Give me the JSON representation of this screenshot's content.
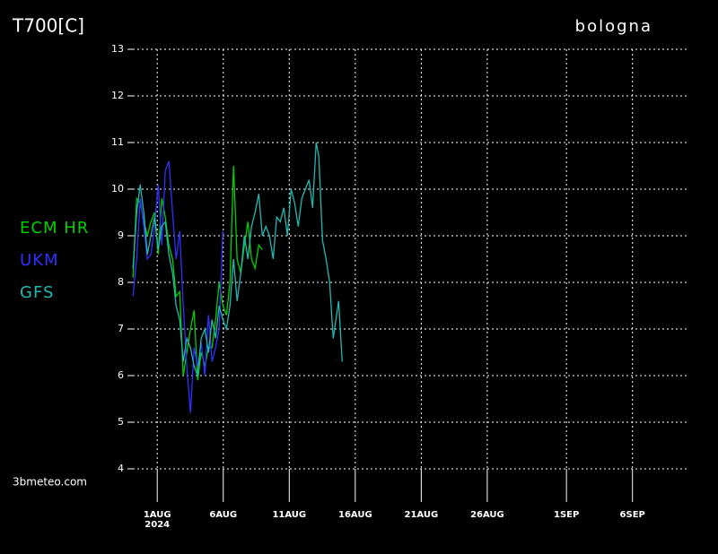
{
  "chart_data": {
    "type": "line",
    "title": "T700[C]",
    "subtitle": "bologna",
    "source": "3bmeteo.com",
    "x_year_label": "2024",
    "xlim": [
      -1.85,
      40.1
    ],
    "xticks": [
      {
        "value": 0,
        "label": "1AUG"
      },
      {
        "value": 5,
        "label": "6AUG"
      },
      {
        "value": 10,
        "label": "11AUG"
      },
      {
        "value": 15,
        "label": "16AUG"
      },
      {
        "value": 20,
        "label": "21AUG"
      },
      {
        "value": 25,
        "label": "26AUG"
      },
      {
        "value": 31,
        "label": "1SEP"
      },
      {
        "value": 36,
        "label": "6SEP"
      }
    ],
    "ylim": [
      4,
      13
    ],
    "yticks": [
      4,
      5,
      6,
      7,
      8,
      9,
      10,
      11,
      12,
      13
    ],
    "grid": true,
    "series": [
      {
        "name": "ECM HR",
        "color": "#00d000",
        "x": [
          -1.84,
          -1.56,
          -1.29,
          -1.02,
          -0.75,
          -0.48,
          -0.2,
          0.07,
          0.34,
          0.61,
          0.88,
          1.16,
          1.43,
          1.7,
          1.97,
          2.24,
          2.52,
          2.79,
          3.06,
          3.33,
          3.61,
          3.88,
          4.15,
          4.42,
          4.69,
          4.97,
          5.24,
          5.51,
          5.78,
          6.05,
          6.33,
          6.6,
          6.87,
          7.14,
          7.41,
          7.69,
          7.96
        ],
        "values": [
          8.1,
          9.8,
          9.7,
          9.3,
          9.0,
          9.3,
          9.5,
          8.6,
          9.8,
          9.4,
          8.8,
          8.5,
          7.7,
          7.8,
          6.0,
          6.5,
          7.0,
          7.4,
          5.9,
          6.5,
          6.2,
          6.6,
          6.6,
          7.2,
          8.0,
          7.5,
          7.3,
          8.0,
          10.5,
          8.5,
          8.2,
          8.8,
          9.3,
          8.5,
          8.3,
          8.8,
          8.7
        ]
      },
      {
        "name": "UKM",
        "color": "#3030ff",
        "x": [
          -1.84,
          -1.56,
          -1.29,
          -1.02,
          -0.75,
          -0.48,
          -0.2,
          0.07,
          0.34,
          0.61,
          0.88,
          1.16,
          1.43,
          1.7,
          1.97,
          2.24,
          2.52,
          2.79,
          3.06,
          3.33,
          3.61,
          3.88,
          4.15,
          4.42,
          4.69,
          4.97
        ],
        "values": [
          7.7,
          8.5,
          9.8,
          9.2,
          8.5,
          8.6,
          9.2,
          10.1,
          8.8,
          10.4,
          10.6,
          9.5,
          8.5,
          9.1,
          7.5,
          6.2,
          5.2,
          6.6,
          6.2,
          6.7,
          6.0,
          7.3,
          6.3,
          6.6,
          7.0,
          9.1
        ]
      },
      {
        "name": "GFS",
        "color": "#20b8b0",
        "x": [
          -1.84,
          -1.56,
          -1.29,
          -1.02,
          -0.75,
          -0.48,
          -0.2,
          0.07,
          0.34,
          0.61,
          0.88,
          1.16,
          1.43,
          1.7,
          1.97,
          2.24,
          2.52,
          2.79,
          3.06,
          3.33,
          3.61,
          3.88,
          4.15,
          4.42,
          4.69,
          4.97,
          5.24,
          5.51,
          5.78,
          6.05,
          6.33,
          6.6,
          6.87,
          7.14,
          7.41,
          7.69,
          7.96,
          8.23,
          8.5,
          8.78,
          9.05,
          9.32,
          9.59,
          9.86,
          10.14,
          10.41,
          10.68,
          10.95,
          11.22,
          11.5,
          11.77,
          12.04,
          12.24,
          12.52,
          12.79,
          13.06,
          13.33,
          13.74,
          14.01
        ],
        "values": [
          8.3,
          9.5,
          10.1,
          9.5,
          8.6,
          9.0,
          9.4,
          8.7,
          9.2,
          9.3,
          8.6,
          8.2,
          7.5,
          7.2,
          6.3,
          6.8,
          6.6,
          6.2,
          6.0,
          6.8,
          7.0,
          6.5,
          7.2,
          6.8,
          7.5,
          7.2,
          7.0,
          7.5,
          8.5,
          7.6,
          8.2,
          9.0,
          8.5,
          9.2,
          9.5,
          9.9,
          9.0,
          9.2,
          9.0,
          8.5,
          9.4,
          9.3,
          9.6,
          9.0,
          10.0,
          9.7,
          9.2,
          9.8,
          10.0,
          10.2,
          9.6,
          11.0,
          10.7,
          8.9,
          8.5,
          8.0,
          6.8,
          7.6,
          6.3
        ]
      }
    ]
  }
}
